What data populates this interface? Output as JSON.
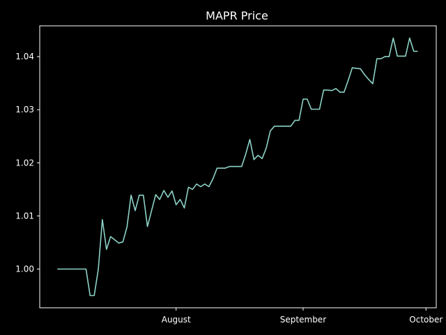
{
  "chart_data": {
    "type": "line",
    "title": "MAPR Price",
    "xlabel": "",
    "ylabel": "",
    "x_tick_labels": [
      "August",
      "September",
      "October"
    ],
    "x_tick_values": [
      29,
      60,
      90
    ],
    "y_ticks": [
      "1.00",
      "1.01",
      "1.02",
      "1.03",
      "1.04"
    ],
    "y_tick_values": [
      1.0,
      1.01,
      1.02,
      1.03,
      1.04
    ],
    "xlim": [
      -4.3,
      92.5
    ],
    "ylim": [
      0.9927,
      1.0458
    ],
    "grid": false,
    "legend": "none",
    "colors": {
      "background": "#000000",
      "axes": "#ffffff",
      "line": "#8dd3c7",
      "text": "#ffffff"
    },
    "series": [
      {
        "x": [
          0,
          1,
          2,
          3,
          4,
          5,
          6,
          7,
          8,
          9,
          10,
          11,
          12,
          13,
          14,
          15,
          16,
          17,
          18,
          19,
          20,
          21,
          22,
          23,
          24,
          25,
          26,
          27,
          28,
          29,
          30,
          31,
          32,
          33,
          34,
          35,
          36,
          37,
          38,
          39,
          40,
          41,
          42,
          43,
          44,
          45,
          46,
          47,
          48,
          49,
          50,
          51,
          52,
          53,
          54,
          55,
          56,
          57,
          58,
          59,
          60,
          61,
          62,
          63,
          64,
          65,
          66,
          67,
          68,
          69,
          70,
          71,
          72,
          73,
          74,
          75,
          76,
          77,
          78,
          79,
          80,
          81,
          82,
          83,
          84,
          85,
          86,
          87,
          88
        ],
        "y": [
          1.0,
          1.0,
          1.0,
          1.0,
          1.0,
          1.0,
          1.0,
          1.0,
          0.995,
          0.995,
          1.0,
          1.0093,
          1.0037,
          1.0061,
          1.0055,
          1.0049,
          1.0051,
          1.0079,
          1.0139,
          1.011,
          1.0139,
          1.0139,
          1.008,
          1.011,
          1.014,
          1.0131,
          1.0148,
          1.0135,
          1.0147,
          1.0121,
          1.0131,
          1.0115,
          1.0154,
          1.015,
          1.016,
          1.0155,
          1.016,
          1.0155,
          1.017,
          1.019,
          1.019,
          1.019,
          1.0193,
          1.0193,
          1.0193,
          1.0193,
          1.0217,
          1.0244,
          1.0206,
          1.0214,
          1.0208,
          1.0228,
          1.026,
          1.0269,
          1.0269,
          1.0269,
          1.0269,
          1.0269,
          1.028,
          1.028,
          1.032,
          1.032,
          1.0301,
          1.0301,
          1.0301,
          1.0337,
          1.0337,
          1.0336,
          1.034,
          1.0333,
          1.0333,
          1.0355,
          1.0379,
          1.0378,
          1.0377,
          1.0366,
          1.0357,
          1.0349,
          1.0396,
          1.0396,
          1.04,
          1.04,
          1.0435,
          1.0401,
          1.0401,
          1.0401,
          1.0435,
          1.041,
          1.041
        ]
      }
    ]
  }
}
